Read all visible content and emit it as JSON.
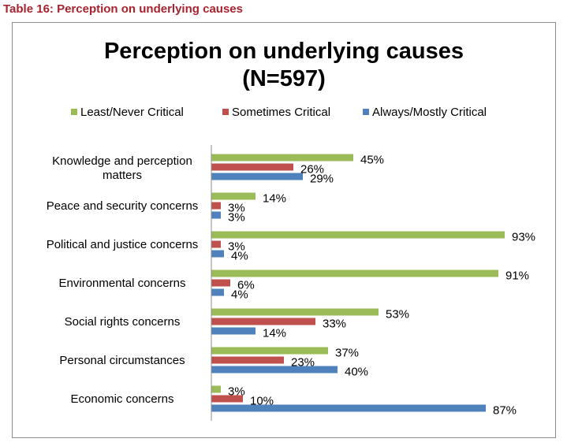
{
  "caption": "Table 16: Perception on underlying causes",
  "colors": {
    "caption": "#a8232f",
    "least_never": "#9bbb59",
    "sometimes": "#c0504d",
    "always_mostly": "#4f81bd"
  },
  "chart_data": {
    "type": "bar",
    "orientation": "horizontal",
    "title": "Perception on underlying causes",
    "subtitle": "(N=597)",
    "legend_position": "top",
    "categories": [
      "Knowledge and perception matters",
      "Peace and security concerns",
      "Political and justice concerns",
      "Environmental concerns",
      "Social rights concerns",
      "Personal circumstances",
      "Economic concerns"
    ],
    "series": [
      {
        "name": "Least/Never Critical",
        "color": "#9bbb59",
        "values": [
          45,
          14,
          93,
          91,
          53,
          37,
          3
        ],
        "labels": [
          "45%",
          "14%",
          "93%",
          "91%",
          "53%",
          "37%",
          "3%"
        ]
      },
      {
        "name": "Sometimes Critical",
        "color": "#c0504d",
        "values": [
          26,
          3,
          3,
          6,
          33,
          23,
          10
        ],
        "labels": [
          "26%",
          "3%",
          "3%",
          "6%",
          "33%",
          "23%",
          "10%"
        ]
      },
      {
        "name": "Always/Mostly Critical",
        "color": "#4f81bd",
        "values": [
          29,
          3,
          4,
          4,
          14,
          40,
          87
        ],
        "labels": [
          "29%",
          "3%",
          "4%",
          "4%",
          "14%",
          "40%",
          "87%"
        ]
      }
    ],
    "xlim": [
      0,
      100
    ],
    "grid": false
  }
}
